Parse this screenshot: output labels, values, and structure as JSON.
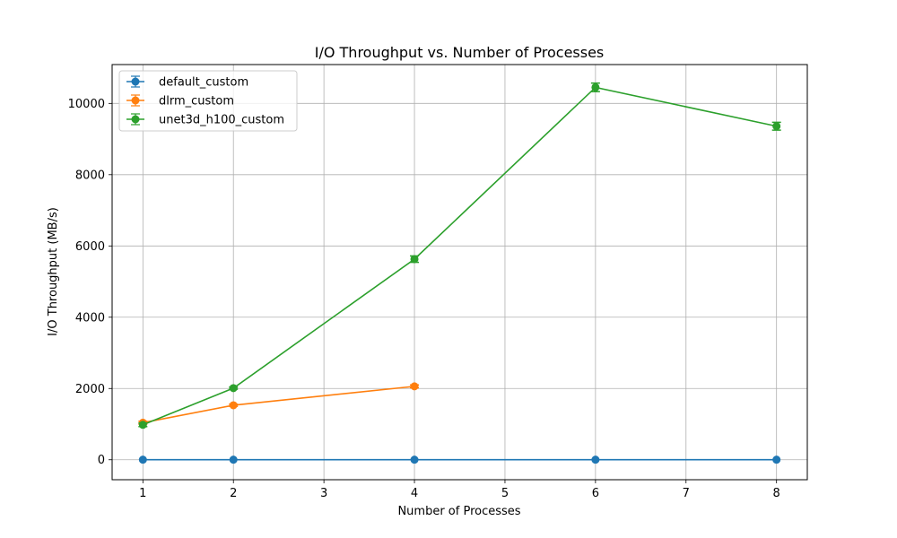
{
  "chart_data": {
    "type": "line",
    "title": "I/O Throughput vs. Number of Processes",
    "xlabel": "Number of Processes",
    "ylabel": "I/O Throughput (MB/s)",
    "xlim": [
      0.66,
      8.34
    ],
    "ylim": [
      -560,
      11090
    ],
    "xticks": [
      1,
      2,
      3,
      4,
      5,
      6,
      7,
      8
    ],
    "yticks": [
      0,
      2000,
      4000,
      6000,
      8000,
      10000
    ],
    "grid": true,
    "legend_position": "top-left",
    "series": [
      {
        "name": "default_custom",
        "color": "#1f77b4",
        "x": [
          1,
          2,
          4,
          6,
          8
        ],
        "y": [
          2,
          2,
          2,
          2,
          2
        ],
        "error": [
          0,
          0,
          0,
          0,
          0
        ]
      },
      {
        "name": "dlrm_custom",
        "color": "#ff7f0e",
        "x": [
          1,
          2,
          4
        ],
        "y": [
          1040,
          1530,
          2060
        ],
        "error": [
          40,
          30,
          40
        ]
      },
      {
        "name": "unet3d_h100_custom",
        "color": "#2ca02c",
        "x": [
          1,
          2,
          4,
          6,
          8
        ],
        "y": [
          980,
          2010,
          5630,
          10450,
          9360
        ],
        "error": [
          50,
          30,
          90,
          120,
          110
        ]
      }
    ]
  }
}
